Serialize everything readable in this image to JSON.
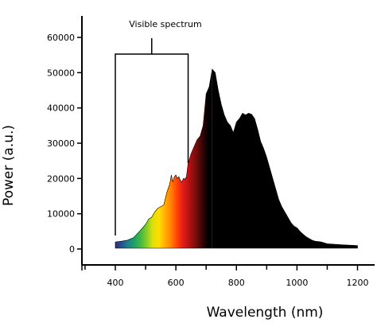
{
  "chart_data": {
    "type": "area",
    "title": "",
    "xlabel": "Wavelength (nm)",
    "ylabel": "Power (a.u.)",
    "xlim": [
      300,
      1250
    ],
    "ylim": [
      -5000,
      64000
    ],
    "x_ticks": [
      400,
      600,
      800,
      1000,
      1200
    ],
    "y_ticks": [
      0,
      10000,
      20000,
      30000,
      40000,
      50000,
      60000
    ],
    "x_tick_labels": [
      "400",
      "600",
      "800",
      "1000",
      "1200"
    ],
    "y_tick_labels": [
      "0",
      "10000",
      "20000",
      "30000",
      "40000",
      "50000",
      "60000"
    ],
    "grid": false,
    "fill": "visible-spectrum colors below 720 nm, black above",
    "series": [
      {
        "x": [
          400,
          420,
          440,
          460,
          480,
          500,
          510,
          520,
          530,
          540,
          550,
          560,
          570,
          580,
          585,
          590,
          595,
          600,
          605,
          610,
          615,
          620,
          625,
          630,
          635,
          640,
          650,
          660,
          670,
          680,
          690,
          700,
          710,
          720,
          730,
          740,
          750,
          760,
          770,
          780,
          790,
          800,
          810,
          820,
          830,
          840,
          850,
          860,
          870,
          880,
          890,
          900,
          910,
          920,
          930,
          940,
          950,
          960,
          970,
          980,
          990,
          1000,
          1010,
          1020,
          1030,
          1040,
          1050,
          1060,
          1080,
          1100,
          1150,
          1200
        ],
        "values": [
          2000,
          2200,
          2500,
          3200,
          5000,
          7000,
          8500,
          9000,
          10500,
          11500,
          12000,
          12500,
          16000,
          18500,
          21000,
          19000,
          20500,
          21000,
          20000,
          20500,
          19500,
          19000,
          20000,
          19800,
          20500,
          24000,
          27000,
          29000,
          31000,
          32000,
          35000,
          44000,
          46000,
          51000,
          50000,
          45000,
          41000,
          38000,
          36000,
          35000,
          33000,
          36000,
          37000,
          38500,
          38000,
          38500,
          38200,
          37000,
          34000,
          30500,
          28500,
          26000,
          23000,
          20000,
          17000,
          14000,
          12000,
          10500,
          9000,
          7500,
          6500,
          6000,
          5000,
          4200,
          3500,
          3000,
          2500,
          2200,
          2000,
          1500,
          1200,
          1000
        ]
      }
    ],
    "annotations": [
      {
        "text": "Visible spectrum",
        "x_range": [
          400,
          630
        ]
      }
    ]
  },
  "colors": {
    "axis": "#000000",
    "fill_infrared": "#000000",
    "spectrum": [
      "#3a2a6e",
      "#24538f",
      "#1d7f8e",
      "#1f9e6a",
      "#3cb849",
      "#7dcc2e",
      "#d8e10f",
      "#ffdd00",
      "#ffb000",
      "#ff8000",
      "#ff4000",
      "#e01a1a",
      "#b01010",
      "#7a0c0c",
      "#3a0505",
      "#000000"
    ]
  }
}
